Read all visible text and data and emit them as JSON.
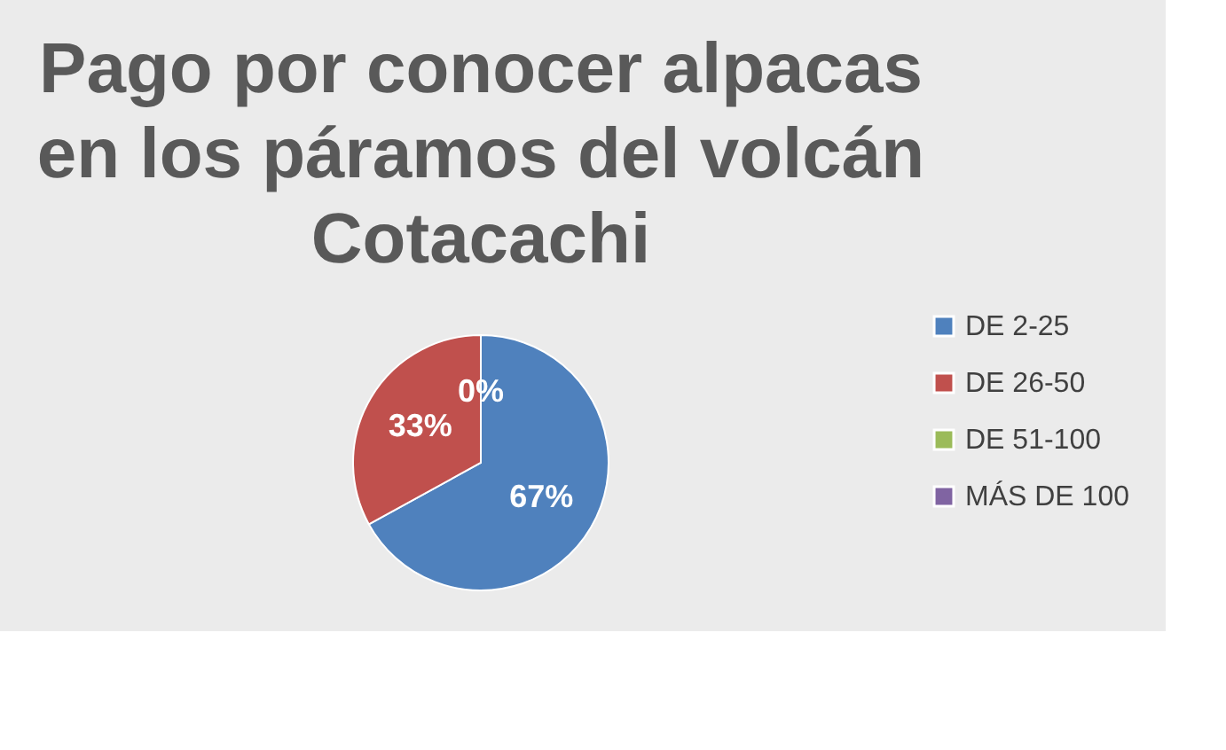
{
  "chart_data": {
    "type": "pie",
    "title": "Pago por conocer alpacas en los páramos del volcán Cotacachi",
    "categories": [
      "DE 2-25",
      "DE 26-50",
      "DE 51-100",
      "MÁS DE 100"
    ],
    "values": [
      67,
      33,
      0,
      0
    ],
    "colors": [
      "#4f81bd",
      "#c0504d",
      "#9bbb59",
      "#8064a2"
    ],
    "value_labels": [
      "67%",
      "33%",
      "0%",
      null
    ],
    "legend": "right"
  }
}
